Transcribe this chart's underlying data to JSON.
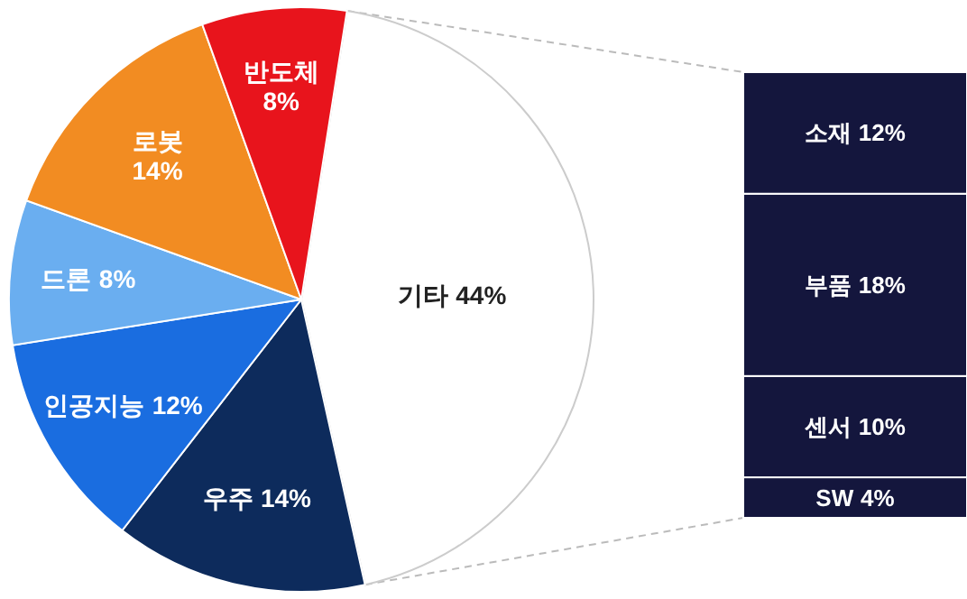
{
  "chart_data": [
    {
      "type": "pie",
      "categories": [
        "기타",
        "우주",
        "인공지능",
        "드론",
        "로봇",
        "반도체"
      ],
      "values": [
        44,
        14,
        12,
        8,
        14,
        8
      ],
      "value_labels": [
        "44%",
        "14%",
        "12%",
        "8%",
        "14%",
        "8%"
      ],
      "colors": [
        "#ffffff",
        "#0d2b5c",
        "#1a6de0",
        "#6aaef0",
        "#f28c22",
        "#e8141c"
      ]
    },
    {
      "type": "bar",
      "stacked": true,
      "categories": [
        null
      ],
      "series": [
        {
          "name": "SW",
          "color": "#14163d",
          "values": [
            4
          ],
          "value_labels": [
            "4%"
          ]
        },
        {
          "name": "센서",
          "color": "#14163d",
          "values": [
            10
          ],
          "value_labels": [
            "10%"
          ]
        },
        {
          "name": "부품",
          "color": "#14163d",
          "values": [
            18
          ],
          "value_labels": [
            "18%"
          ]
        },
        {
          "name": "소재",
          "color": "#14163d",
          "values": [
            12
          ],
          "value_labels": [
            "12%"
          ]
        }
      ]
    }
  ]
}
